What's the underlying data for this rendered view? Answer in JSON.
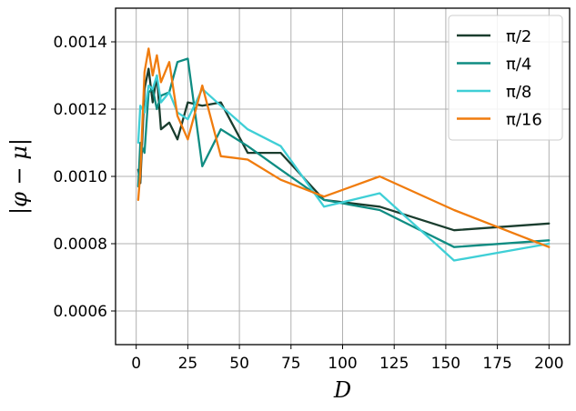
{
  "chart_data": {
    "type": "line",
    "xlabel": "D",
    "ylabel": "|φ − μ|",
    "xlim": [
      -10,
      210
    ],
    "ylim": [
      0.0005,
      0.0015
    ],
    "x_ticks": [
      0,
      25,
      50,
      75,
      100,
      125,
      150,
      175,
      200
    ],
    "x_tick_labels": [
      "0",
      "25",
      "50",
      "75",
      "100",
      "125",
      "150",
      "175",
      "200"
    ],
    "y_ticks": [
      0.0006,
      0.0008,
      0.001,
      0.0012,
      0.0014
    ],
    "y_tick_labels": [
      "0.0006",
      "0.0008",
      "0.0010",
      "0.0012",
      "0.0014"
    ],
    "grid": true,
    "legend_position": "top-right",
    "series": [
      {
        "name": "π/2",
        "color": "#1a3d2e",
        "points": [
          [
            1,
            0.00102
          ],
          [
            2,
            0.00098
          ],
          [
            4,
            0.00126
          ],
          [
            6,
            0.00132
          ],
          [
            8,
            0.00122
          ],
          [
            10,
            0.0013
          ],
          [
            12,
            0.00114
          ],
          [
            16,
            0.00116
          ],
          [
            20,
            0.00111
          ],
          [
            25,
            0.00122
          ],
          [
            32,
            0.00121
          ],
          [
            41,
            0.00122
          ],
          [
            54,
            0.00107
          ],
          [
            70,
            0.00107
          ],
          [
            91,
            0.00093
          ],
          [
            118,
            0.00091
          ],
          [
            154,
            0.00084
          ],
          [
            200,
            0.00086
          ]
        ]
      },
      {
        "name": "π/4",
        "color": "#0f8c82",
        "points": [
          [
            1,
            0.00097
          ],
          [
            2,
            0.0011
          ],
          [
            4,
            0.00107
          ],
          [
            6,
            0.00125
          ],
          [
            8,
            0.00126
          ],
          [
            10,
            0.0012
          ],
          [
            12,
            0.00124
          ],
          [
            16,
            0.00125
          ],
          [
            20,
            0.00134
          ],
          [
            25,
            0.00135
          ],
          [
            32,
            0.00103
          ],
          [
            41,
            0.00114
          ],
          [
            54,
            0.00109
          ],
          [
            70,
            0.00102
          ],
          [
            91,
            0.00093
          ],
          [
            118,
            0.0009
          ],
          [
            154,
            0.00079
          ],
          [
            200,
            0.00081
          ]
        ]
      },
      {
        "name": "π/8",
        "color": "#3fcfd6",
        "points": [
          [
            1,
            0.0011
          ],
          [
            2,
            0.00121
          ],
          [
            4,
            0.00119
          ],
          [
            6,
            0.00127
          ],
          [
            8,
            0.00126
          ],
          [
            10,
            0.0013
          ],
          [
            12,
            0.00122
          ],
          [
            16,
            0.00125
          ],
          [
            20,
            0.00119
          ],
          [
            25,
            0.00117
          ],
          [
            32,
            0.00126
          ],
          [
            41,
            0.00121
          ],
          [
            54,
            0.00114
          ],
          [
            70,
            0.00109
          ],
          [
            91,
            0.00091
          ],
          [
            118,
            0.00095
          ],
          [
            154,
            0.00075
          ],
          [
            200,
            0.0008
          ]
        ]
      },
      {
        "name": "π/16",
        "color": "#f07c0e",
        "points": [
          [
            1,
            0.00093
          ],
          [
            2,
            0.00101
          ],
          [
            4,
            0.00131
          ],
          [
            6,
            0.00138
          ],
          [
            8,
            0.0013
          ],
          [
            10,
            0.00136
          ],
          [
            12,
            0.00128
          ],
          [
            16,
            0.00134
          ],
          [
            20,
            0.00118
          ],
          [
            25,
            0.00111
          ],
          [
            32,
            0.00127
          ],
          [
            41,
            0.00106
          ],
          [
            54,
            0.00105
          ],
          [
            70,
            0.00099
          ],
          [
            91,
            0.00094
          ],
          [
            118,
            0.001
          ],
          [
            154,
            0.0009
          ],
          [
            200,
            0.00079
          ]
        ]
      }
    ]
  }
}
